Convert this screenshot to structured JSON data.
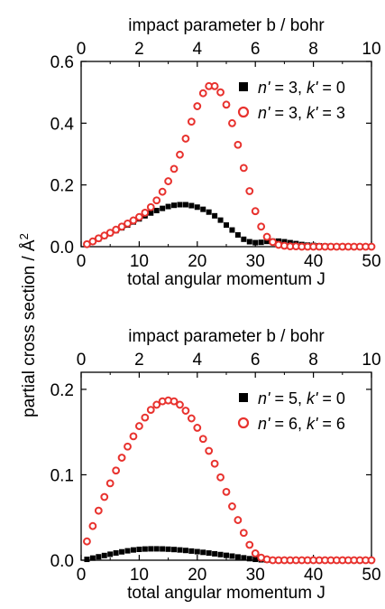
{
  "figure": {
    "y_axis_title": "partial cross section / Å",
    "y_axis_title_superscript": "2"
  },
  "chart_data": [
    {
      "type": "scatter",
      "title": "",
      "xlabel": "total angular momentum J",
      "x2label": "impact parameter b / bohr",
      "ylabel": "partial cross section / Å²",
      "xlim": [
        0,
        50
      ],
      "x2lim": [
        0,
        10
      ],
      "ylim": [
        0,
        0.6
      ],
      "xticks": [
        0,
        10,
        20,
        30,
        40,
        50
      ],
      "x2ticks": [
        0,
        2,
        4,
        6,
        8,
        10
      ],
      "yticks": [
        "0.0",
        "0.2",
        "0.4",
        "0.6"
      ],
      "grid": false,
      "legend_position": "top-right",
      "series": [
        {
          "name": "n' = 3, k' = 0",
          "name_parts": [
            "n'",
            " = 3, ",
            "k'",
            " = 0"
          ],
          "marker": "filled-square",
          "color": "#000000",
          "x": [
            1,
            2,
            3,
            4,
            5,
            6,
            7,
            8,
            9,
            10,
            11,
            12,
            13,
            14,
            15,
            16,
            17,
            18,
            19,
            20,
            21,
            22,
            23,
            24,
            25,
            26,
            27,
            28,
            29,
            30,
            31,
            32,
            33,
            34,
            35,
            36,
            37,
            38,
            39,
            40,
            41,
            42,
            43,
            44,
            45,
            46,
            47,
            48,
            49,
            50
          ],
          "y": [
            0.008,
            0.016,
            0.025,
            0.034,
            0.043,
            0.052,
            0.061,
            0.07,
            0.08,
            0.09,
            0.1,
            0.109,
            0.117,
            0.124,
            0.13,
            0.134,
            0.136,
            0.136,
            0.133,
            0.128,
            0.121,
            0.112,
            0.1,
            0.086,
            0.07,
            0.054,
            0.038,
            0.024,
            0.016,
            0.013,
            0.014,
            0.017,
            0.018,
            0.018,
            0.016,
            0.013,
            0.01,
            0.007,
            0.005,
            0.004,
            0.003,
            0.002,
            0.001,
            0.001,
            0.001,
            0.0,
            0.0,
            0.0,
            0.0,
            0.0
          ]
        },
        {
          "name": "n' = 3, k' = 3",
          "name_parts": [
            "n'",
            " = 3, ",
            "k'",
            " = 3"
          ],
          "marker": "open-circle",
          "color": "#e8322e",
          "x": [
            1,
            2,
            3,
            4,
            5,
            6,
            7,
            8,
            9,
            10,
            11,
            12,
            13,
            14,
            15,
            16,
            17,
            18,
            19,
            20,
            21,
            22,
            23,
            24,
            25,
            26,
            27,
            28,
            29,
            30,
            31,
            32,
            33,
            34,
            35,
            36,
            37,
            38,
            39,
            40,
            41,
            42,
            43,
            44,
            45,
            46,
            47,
            48,
            49,
            50
          ],
          "y": [
            0.008,
            0.017,
            0.027,
            0.036,
            0.045,
            0.055,
            0.065,
            0.075,
            0.085,
            0.096,
            0.11,
            0.128,
            0.15,
            0.178,
            0.212,
            0.252,
            0.298,
            0.35,
            0.405,
            0.455,
            0.497,
            0.52,
            0.52,
            0.5,
            0.46,
            0.4,
            0.33,
            0.255,
            0.18,
            0.115,
            0.065,
            0.032,
            0.015,
            0.006,
            0.003,
            0.001,
            0.001,
            0.0,
            0.0,
            0.0,
            0.0,
            0.0,
            0.0,
            0.0,
            0.0,
            0.0,
            0.0,
            0.0,
            0.0,
            0.0
          ]
        }
      ]
    },
    {
      "type": "scatter",
      "title": "",
      "xlabel": "total angular momentum J",
      "x2label": "impact parameter b / bohr",
      "ylabel": "partial cross section / Å²",
      "xlim": [
        0,
        50
      ],
      "x2lim": [
        0,
        10
      ],
      "ylim": [
        0,
        0.22
      ],
      "xticks": [
        0,
        10,
        20,
        30,
        40,
        50
      ],
      "x2ticks": [
        0,
        2,
        4,
        6,
        8,
        10
      ],
      "yticks": [
        "0.0",
        "0.1",
        "0.2"
      ],
      "grid": false,
      "legend_position": "top-right",
      "series": [
        {
          "name": "n' = 5, k' = 0",
          "name_parts": [
            "n'",
            " = 5, ",
            "k'",
            " = 0"
          ],
          "marker": "filled-square",
          "color": "#000000",
          "x": [
            1,
            2,
            3,
            4,
            5,
            6,
            7,
            8,
            9,
            10,
            11,
            12,
            13,
            14,
            15,
            16,
            17,
            18,
            19,
            20,
            21,
            22,
            23,
            24,
            25,
            26,
            27,
            28,
            29,
            30,
            31,
            32,
            33,
            34,
            35,
            36,
            37,
            38,
            39,
            40,
            41,
            42,
            43,
            44,
            45,
            46,
            47,
            48,
            49,
            50
          ],
          "y": [
            0.001,
            0.0025,
            0.004,
            0.0055,
            0.007,
            0.0085,
            0.0098,
            0.011,
            0.012,
            0.0127,
            0.0131,
            0.0133,
            0.0133,
            0.0132,
            0.0129,
            0.0125,
            0.012,
            0.0114,
            0.0107,
            0.01,
            0.0092,
            0.0084,
            0.0075,
            0.0066,
            0.0057,
            0.0048,
            0.0038,
            0.0028,
            0.0018,
            0.001,
            0.0005,
            0.0002,
            0.0001,
            0,
            0,
            0,
            0,
            0,
            0,
            0,
            0,
            0,
            0,
            0,
            0,
            0,
            0,
            0,
            0,
            0
          ]
        },
        {
          "name": "n' = 6, k' = 6",
          "name_parts": [
            "n'",
            " = 6, ",
            "k'",
            " = 6"
          ],
          "marker": "open-circle",
          "color": "#e8322e",
          "x": [
            1,
            2,
            3,
            4,
            5,
            6,
            7,
            8,
            9,
            10,
            11,
            12,
            13,
            14,
            15,
            16,
            17,
            18,
            19,
            20,
            21,
            22,
            23,
            24,
            25,
            26,
            27,
            28,
            29,
            30,
            31,
            32,
            33,
            34,
            35,
            36,
            37,
            38,
            39,
            40,
            41,
            42,
            43,
            44,
            45,
            46,
            47,
            48,
            49,
            50
          ],
          "y": [
            0.022,
            0.04,
            0.058,
            0.074,
            0.09,
            0.105,
            0.12,
            0.133,
            0.145,
            0.157,
            0.167,
            0.176,
            0.182,
            0.186,
            0.187,
            0.186,
            0.182,
            0.175,
            0.166,
            0.155,
            0.142,
            0.128,
            0.113,
            0.097,
            0.08,
            0.063,
            0.047,
            0.032,
            0.018,
            0.008,
            0.003,
            0.001,
            0,
            0,
            0,
            0,
            0,
            0,
            0,
            0,
            0,
            0,
            0,
            0,
            0,
            0,
            0,
            0,
            0,
            0
          ]
        }
      ]
    }
  ]
}
